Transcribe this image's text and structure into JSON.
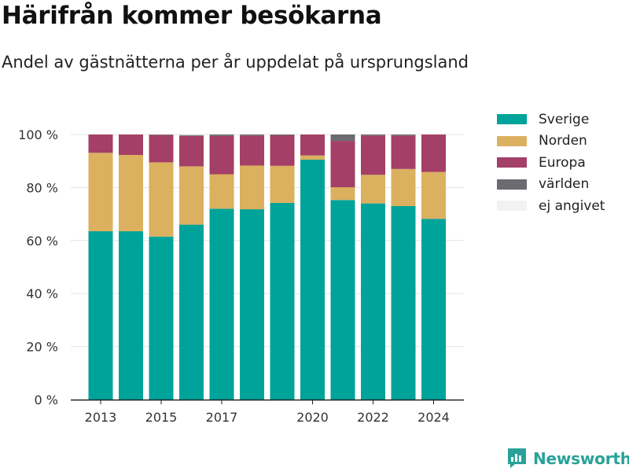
{
  "header": {
    "title": "Härifrån kommer besökarna",
    "subtitle": "Andel av gästnätterna per år uppdelat på ursprungsland"
  },
  "brand": {
    "name": "Newsworthy",
    "icon": "newsworthy-logo-icon",
    "color": "#2aa198"
  },
  "chart_data": {
    "type": "bar",
    "stacked": true,
    "x": [
      2013,
      2014,
      2015,
      2016,
      2017,
      2018,
      2019,
      2020,
      2021,
      2022,
      2023,
      2024
    ],
    "x_ticks": [
      "2013",
      "2015",
      "2017",
      "2020",
      "2022",
      "2024"
    ],
    "y_ticks": [
      "0 %",
      "20 %",
      "40 %",
      "60 %",
      "80 %",
      "100 %"
    ],
    "ylim": [
      0,
      100
    ],
    "grid": true,
    "legend_position": "right",
    "series": [
      {
        "name": "Sverige",
        "color": "#00a39a",
        "values": [
          63.5,
          63.5,
          61.5,
          66,
          72,
          71.8,
          74.2,
          90.5,
          75.3,
          74,
          73,
          68.2
        ]
      },
      {
        "name": "Norden",
        "color": "#dbb05f",
        "values": [
          29.6,
          28.8,
          28,
          22,
          13,
          16.5,
          14,
          1.6,
          4.8,
          10.8,
          14,
          17.7
        ]
      },
      {
        "name": "Europa",
        "color": "#a43f67",
        "values": [
          6.9,
          7.7,
          10.3,
          11.5,
          14.5,
          11.3,
          11.5,
          7.9,
          17.5,
          14.8,
          12.6,
          14.1
        ]
      },
      {
        "name": "världen",
        "color": "#6b6b70",
        "values": [
          0,
          0,
          0.2,
          0.3,
          0.5,
          0.4,
          0.3,
          0,
          2.4,
          0.4,
          0.4,
          0
        ]
      },
      {
        "name": "ej angivet",
        "color": "#f2f2f2",
        "values": [
          0,
          0,
          0,
          0.2,
          0,
          0,
          0,
          0,
          0,
          0,
          0,
          0
        ]
      }
    ]
  }
}
